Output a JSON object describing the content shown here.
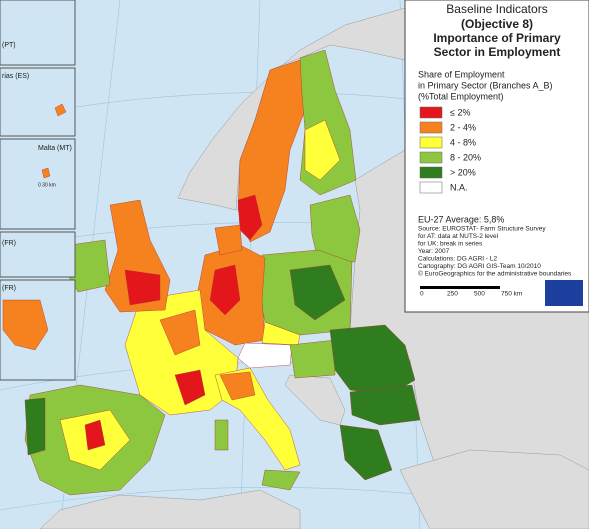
{
  "title": [
    "Baseline Indicators",
    "(Objective 8)",
    "Importance of Primary",
    "Sector in Employment"
  ],
  "legend": {
    "title": [
      "Share of Employment",
      "in Primary Sector (Branches A_B)",
      "(%Total Employment)"
    ],
    "items": [
      {
        "label": "≤ 2%",
        "color": "#e3161c"
      },
      {
        "label": "2 - 4%",
        "color": "#f5821f"
      },
      {
        "label": "4 - 8%",
        "color": "#ffff3a"
      },
      {
        "label": "8 - 20%",
        "color": "#8dc63f"
      },
      {
        "label": "> 20%",
        "color": "#2f7d1f"
      },
      {
        "label": "N.A.",
        "color": "#ffffff"
      }
    ]
  },
  "notes": {
    "average": "EU-27 Average: 5,8%",
    "lines": [
      "Source: EUROSTAT- Farm Structure Survey",
      "   for AT: data at NUTS-2 level",
      "   for UK: break in series",
      "Year: 2007",
      "Calculations: DG AGRI - L2",
      "Cartography: DG AGRI GIS-Team 10/2010",
      "© EuroGeographics for the administrative boundaries"
    ]
  },
  "scale": {
    "ticks": [
      "0",
      "250",
      "500",
      "750 km"
    ]
  },
  "insets": [
    "(PT)",
    "rias (ES)",
    "Malta (MT)",
    "0  30 km",
    "(FR)",
    "(FR)"
  ]
}
